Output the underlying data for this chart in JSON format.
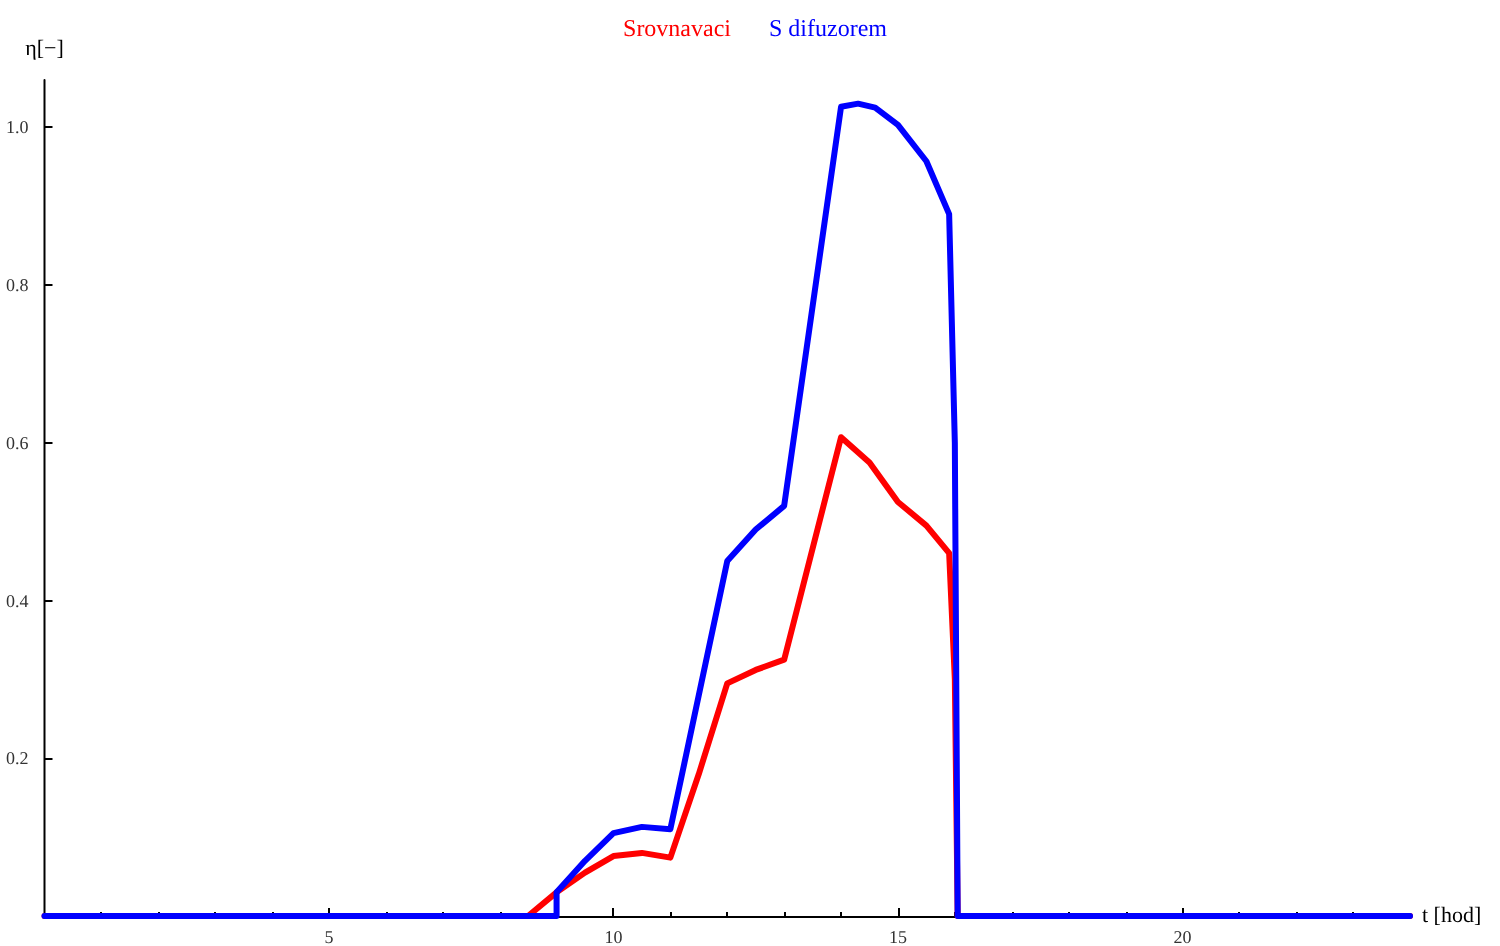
{
  "chart_data": {
    "type": "line",
    "xlabel": "t [hod]",
    "ylabel": "η[−]",
    "xlim": [
      0,
      24
    ],
    "ylim": [
      0,
      1.06
    ],
    "xticks": [
      5,
      10,
      15,
      20
    ],
    "yticks": [
      0.2,
      0.4,
      0.6,
      0.8,
      {
        "value": 1,
        "label": "1.0"
      }
    ],
    "legend": "top",
    "marker": "none",
    "line_style": "solid",
    "grid": false,
    "series": [
      {
        "name": "Srovnavaci",
        "color": "#ff0000",
        "x": [
          0,
          8.5,
          9,
          9.5,
          10,
          10.5,
          11,
          11.5,
          12,
          12.5,
          13,
          14,
          14.5,
          15,
          15.5,
          15.9,
          16,
          16.05,
          24
        ],
        "values": [
          0,
          0,
          0.03,
          0.055,
          0.076,
          0.08,
          0.074,
          0.18,
          0.295,
          0.312,
          0.325,
          0.607,
          0.575,
          0.525,
          0.495,
          0.46,
          0.3,
          0,
          0
        ]
      },
      {
        "name": "S difuzorem",
        "color": "#0000ff",
        "x": [
          0,
          9,
          9,
          9.5,
          10,
          10.5,
          11,
          11.5,
          12,
          12.5,
          13,
          14,
          14.3,
          14.6,
          15,
          15.5,
          15.9,
          16,
          16.05,
          24
        ],
        "values": [
          0,
          0,
          0.03,
          0.07,
          0.105,
          0.113,
          0.11,
          0.28,
          0.45,
          0.49,
          0.52,
          1.026,
          1.03,
          1.025,
          1.003,
          0.957,
          0.89,
          0.6,
          0,
          0
        ]
      }
    ]
  }
}
